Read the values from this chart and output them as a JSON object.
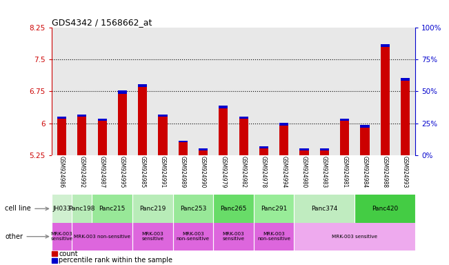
{
  "title": "GDS4342 / 1568662_at",
  "samples": [
    "GSM924986",
    "GSM924992",
    "GSM924987",
    "GSM924995",
    "GSM924985",
    "GSM924991",
    "GSM924989",
    "GSM924990",
    "GSM924979",
    "GSM924982",
    "GSM924978",
    "GSM924994",
    "GSM924980",
    "GSM924983",
    "GSM924981",
    "GSM924984",
    "GSM924988",
    "GSM924993"
  ],
  "red_values": [
    6.1,
    6.15,
    6.05,
    6.7,
    6.85,
    6.15,
    5.55,
    5.35,
    6.35,
    6.1,
    5.4,
    5.95,
    5.35,
    5.35,
    6.05,
    5.9,
    7.8,
    7.0
  ],
  "blue_values": [
    0.05,
    0.05,
    0.05,
    0.07,
    0.07,
    0.06,
    0.03,
    0.05,
    0.06,
    0.05,
    0.05,
    0.06,
    0.05,
    0.05,
    0.06,
    0.06,
    0.06,
    0.06
  ],
  "ymin": 5.25,
  "ymax": 8.25,
  "yticks_left": [
    5.25,
    6.0,
    6.75,
    7.5,
    8.25
  ],
  "ytick_labels_left": [
    "5.25",
    "6",
    "6.75",
    "7.5",
    "8.25"
  ],
  "yticks_right_pct": [
    0,
    25,
    50,
    75,
    100
  ],
  "dotted_lines": [
    6.0,
    6.75,
    7.5
  ],
  "cell_groups": [
    {
      "label": "JH033",
      "start": 0,
      "end": 1,
      "color": "#d0f0d0"
    },
    {
      "label": "Panc198",
      "start": 1,
      "end": 2,
      "color": "#b8ecb8"
    },
    {
      "label": "Panc215",
      "start": 2,
      "end": 4,
      "color": "#98e898"
    },
    {
      "label": "Panc219",
      "start": 4,
      "end": 6,
      "color": "#b8ecb8"
    },
    {
      "label": "Panc253",
      "start": 6,
      "end": 8,
      "color": "#98e898"
    },
    {
      "label": "Panc265",
      "start": 8,
      "end": 10,
      "color": "#68dc68"
    },
    {
      "label": "Panc291",
      "start": 10,
      "end": 12,
      "color": "#98ec98"
    },
    {
      "label": "Panc374",
      "start": 12,
      "end": 15,
      "color": "#c0ecc0"
    },
    {
      "label": "Panc420",
      "start": 15,
      "end": 18,
      "color": "#44cc44"
    }
  ],
  "other_groups": [
    {
      "label": "MRK-003\nsensitive",
      "start": 0,
      "end": 1,
      "color": "#dd66dd"
    },
    {
      "label": "MRK-003 non-sensitive",
      "start": 1,
      "end": 4,
      "color": "#dd66dd"
    },
    {
      "label": "MRK-003\nsensitive",
      "start": 4,
      "end": 6,
      "color": "#dd66dd"
    },
    {
      "label": "MRK-003\nnon-sensitive",
      "start": 6,
      "end": 8,
      "color": "#dd66dd"
    },
    {
      "label": "MRK-003\nsensitive",
      "start": 8,
      "end": 10,
      "color": "#dd66dd"
    },
    {
      "label": "MRK-003\nnon-sensitive",
      "start": 10,
      "end": 12,
      "color": "#dd66dd"
    },
    {
      "label": "MRK-003 sensitive",
      "start": 12,
      "end": 18,
      "color": "#eeaaee"
    }
  ],
  "bar_width": 0.45,
  "left_axis_color": "#cc0000",
  "right_axis_color": "#0000cc",
  "plot_bg": "#e8e8e8",
  "xtick_bg": "#cccccc",
  "fig_bg": "#ffffff"
}
